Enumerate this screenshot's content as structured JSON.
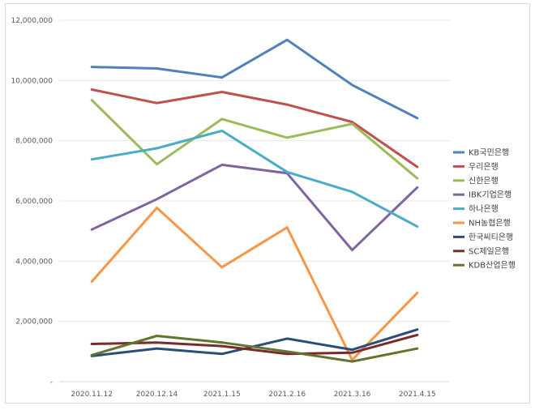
{
  "chart_data": {
    "type": "line",
    "title": "",
    "xlabel": "",
    "ylabel": "",
    "ylim": [
      0,
      12000000
    ],
    "grid": true,
    "legend_position": "right",
    "yticks": [
      {
        "value": 0,
        "label": "-"
      },
      {
        "value": 2000000,
        "label": "2,000,000"
      },
      {
        "value": 4000000,
        "label": "4,000,000"
      },
      {
        "value": 6000000,
        "label": "6,000,000"
      },
      {
        "value": 8000000,
        "label": "8,000,000"
      },
      {
        "value": 10000000,
        "label": "10,000,000"
      },
      {
        "value": 12000000,
        "label": "12,000,000"
      }
    ],
    "categories": [
      "2020.11.12",
      "2020.12.14",
      "2021.1.15",
      "2021.2.16",
      "2021.3.16",
      "2021.4.15"
    ],
    "series": [
      {
        "name": "KB국민은행",
        "color": "#4F81BD",
        "values": [
          10450000,
          10400000,
          10100000,
          11350000,
          9850000,
          8750000
        ]
      },
      {
        "name": "우리은행",
        "color": "#C0504D",
        "values": [
          9700000,
          9250000,
          9620000,
          9200000,
          8620000,
          7130000
        ]
      },
      {
        "name": "신한은행",
        "color": "#9BBB59",
        "values": [
          9350000,
          7220000,
          8720000,
          8100000,
          8560000,
          6750000
        ]
      },
      {
        "name": "IBK기업은행",
        "color": "#8064A2",
        "values": [
          5050000,
          6060000,
          7200000,
          6920000,
          4370000,
          6450000
        ]
      },
      {
        "name": "하나은행",
        "color": "#4BACC6",
        "values": [
          7380000,
          7750000,
          8330000,
          6960000,
          6300000,
          5150000
        ]
      },
      {
        "name": "NH농협은행",
        "color": "#F79646",
        "values": [
          3320000,
          5770000,
          3800000,
          5120000,
          720000,
          2950000
        ]
      },
      {
        "name": "한국씨티은행",
        "color": "#2C4D75",
        "values": [
          850000,
          1100000,
          920000,
          1430000,
          1060000,
          1730000
        ]
      },
      {
        "name": "SC제일은행",
        "color": "#772C2A",
        "values": [
          1250000,
          1300000,
          1180000,
          920000,
          960000,
          1550000
        ]
      },
      {
        "name": "KDB산업은행",
        "color": "#5F7530",
        "values": [
          880000,
          1520000,
          1300000,
          1000000,
          670000,
          1100000
        ]
      }
    ]
  }
}
